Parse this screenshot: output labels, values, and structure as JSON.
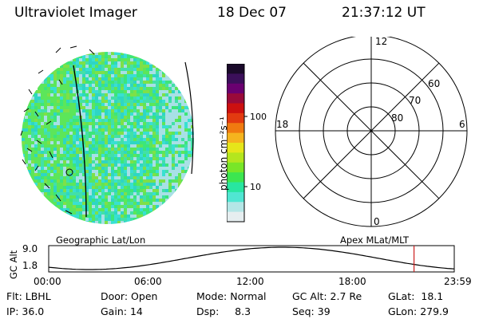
{
  "header": {
    "instrument": "Ultraviolet Imager",
    "date": "18 Dec 07",
    "time": "21:37:12 UT"
  },
  "colorbar": {
    "label": "photon cm⁻²s⁻¹",
    "ticks": [
      "100",
      "10"
    ],
    "colors": [
      "#1a0a2a",
      "#3b0f5a",
      "#6a0070",
      "#990a3a",
      "#cc1010",
      "#e23a10",
      "#f07a10",
      "#f5b41e",
      "#e6e61a",
      "#b4e61e",
      "#78e628",
      "#3ce650",
      "#28e6a0",
      "#50e6d2",
      "#b4e6e6",
      "#e6eef0"
    ]
  },
  "image_panel": {
    "label": "Geographic Lat/Lon",
    "pixel_colors": [
      "#42e0a8",
      "#3ce67a",
      "#5ce65a",
      "#2ed6c4",
      "#7ee048",
      "#38e0d2",
      "#a8e0e6"
    ]
  },
  "polar_panel": {
    "label": "Apex MLat/MLT",
    "mlt_labels": {
      "top": "12",
      "bottom": "0",
      "left": "18",
      "right": "6"
    },
    "mlat_labels": [
      "60",
      "70",
      "80"
    ]
  },
  "altitude_plot": {
    "ylabel": "GC Alt",
    "y_ticks": [
      "9.0",
      "1.8"
    ],
    "x_ticks": [
      "00:00",
      "06:00",
      "12:00",
      "18:00",
      "23:59"
    ],
    "marker_color": "#cc2020"
  },
  "info": {
    "flt": {
      "label": "Flt:",
      "value": "LBHL"
    },
    "ip": {
      "label": "IP:",
      "value": "36.0"
    },
    "door": {
      "label": "Door:",
      "value": "Open"
    },
    "gain": {
      "label": "Gain:",
      "value": "14"
    },
    "mode": {
      "label": "Mode:",
      "value": "Normal"
    },
    "dsp": {
      "label": "Dsp:",
      "value": "8.3"
    },
    "gcalt": {
      "label": "GC Alt:",
      "value": "2.7 Re"
    },
    "seq": {
      "label": "Seq:",
      "value": "39"
    },
    "glat": {
      "label": "GLat:",
      "value": "18.1"
    },
    "glon": {
      "label": "GLon:",
      "value": "279.9"
    }
  }
}
